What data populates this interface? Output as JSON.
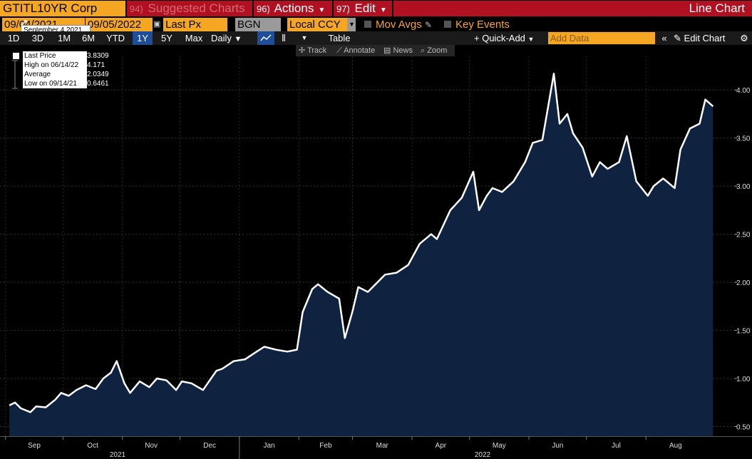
{
  "toolbar": {
    "ticker": "GTITL10YR Corp",
    "suggested": {
      "num": "94)",
      "label": "Suggested Charts"
    },
    "actions": {
      "num": "96)",
      "label": "Actions"
    },
    "edit": {
      "num": "97)",
      "label": "Edit"
    },
    "title": "Line Chart"
  },
  "params": {
    "start_date": "09/04/2021",
    "end_date": "09/05/2022",
    "field": "Last Px",
    "source": "BGN",
    "currency": "Local CCY",
    "mov_avgs": "Mov Avgs",
    "key_events": "Key Events",
    "tooltip": "September 4 2021"
  },
  "ranges": {
    "d1": "1D",
    "d3": "3D",
    "m1": "1M",
    "m6": "6M",
    "ytd": "YTD",
    "y1": "1Y",
    "y5": "5Y",
    "max": "Max",
    "periodicity": "Daily",
    "table": "Table",
    "quick_add": "Quick-Add",
    "add_data_placeholder": "Add Data",
    "edit_chart": "Edit Chart"
  },
  "tools": {
    "track": "Track",
    "annotate": "Annotate",
    "news": "News",
    "zoom": "Zoom"
  },
  "legend": [
    {
      "label": "Last Price",
      "value": "3.8309"
    },
    {
      "label": "High on 06/14/22",
      "value": "4.171"
    },
    {
      "label": "Average",
      "value": "2.0349"
    },
    {
      "label": "Low on 09/14/21",
      "value": "0.6461"
    }
  ],
  "colors": {
    "line": "#ffffff",
    "fill": "#0f2240",
    "accent": "#f5a623",
    "red": "#b01020"
  },
  "chart_data": {
    "type": "area",
    "y_ticks": [
      "0.50",
      "1.00",
      "1.50",
      "2.00",
      "2.50",
      "3.00",
      "3.50",
      "4.00"
    ],
    "ylim": [
      0.4,
      4.35
    ],
    "x_months": [
      "Sep",
      "Oct",
      "Nov",
      "Dec",
      "Jan",
      "Feb",
      "Mar",
      "Apr",
      "May",
      "Jun",
      "Jul",
      "Aug"
    ],
    "x_years": [
      "2021",
      "2022"
    ],
    "x": [
      "2021-09-03",
      "2021-09-06",
      "2021-09-09",
      "2021-09-14",
      "2021-09-17",
      "2021-09-22",
      "2021-09-27",
      "2021-09-30",
      "2021-10-04",
      "2021-10-08",
      "2021-10-13",
      "2021-10-18",
      "2021-10-22",
      "2021-10-26",
      "2021-10-29",
      "2021-11-02",
      "2021-11-05",
      "2021-11-10",
      "2021-11-15",
      "2021-11-19",
      "2021-11-24",
      "2021-11-29",
      "2021-12-02",
      "2021-12-07",
      "2021-12-13",
      "2021-12-20",
      "2021-12-23",
      "2021-12-29",
      "2022-01-04",
      "2022-01-10",
      "2022-01-14",
      "2022-01-20",
      "2022-01-26",
      "2022-01-31",
      "2022-02-03",
      "2022-02-08",
      "2022-02-11",
      "2022-02-16",
      "2022-02-22",
      "2022-02-25",
      "2022-03-01",
      "2022-03-04",
      "2022-03-09",
      "2022-03-14",
      "2022-03-18",
      "2022-03-24",
      "2022-03-30",
      "2022-04-05",
      "2022-04-11",
      "2022-04-14",
      "2022-04-21",
      "2022-04-27",
      "2022-05-03",
      "2022-05-06",
      "2022-05-10",
      "2022-05-13",
      "2022-05-18",
      "2022-05-24",
      "2022-05-30",
      "2022-06-03",
      "2022-06-08",
      "2022-06-14",
      "2022-06-17",
      "2022-06-21",
      "2022-06-24",
      "2022-06-29",
      "2022-07-04",
      "2022-07-08",
      "2022-07-12",
      "2022-07-18",
      "2022-07-22",
      "2022-07-27",
      "2022-08-02",
      "2022-08-05",
      "2022-08-10",
      "2022-08-16",
      "2022-08-19",
      "2022-08-24",
      "2022-08-29",
      "2022-09-01",
      "2022-09-05"
    ],
    "series": [
      {
        "values": [
          0.72,
          0.75,
          0.69,
          0.65,
          0.71,
          0.7,
          0.78,
          0.85,
          0.82,
          0.88,
          0.93,
          0.89,
          1.0,
          1.06,
          1.18,
          0.95,
          0.85,
          0.97,
          0.91,
          1.0,
          0.98,
          0.88,
          0.97,
          0.95,
          0.88,
          1.08,
          1.1,
          1.18,
          1.2,
          1.28,
          1.33,
          1.3,
          1.28,
          1.3,
          1.69,
          1.93,
          1.98,
          1.9,
          1.83,
          1.42,
          1.7,
          1.95,
          1.9,
          2.0,
          2.08,
          2.1,
          2.18,
          2.4,
          2.5,
          2.45,
          2.75,
          2.88,
          3.15,
          2.75,
          2.9,
          2.98,
          2.94,
          3.05,
          3.25,
          3.45,
          3.48,
          4.17,
          3.65,
          3.75,
          3.55,
          3.4,
          3.1,
          3.25,
          3.18,
          3.25,
          3.52,
          3.05,
          2.9,
          3.0,
          3.08,
          2.98,
          3.38,
          3.6,
          3.65,
          3.9,
          3.83
        ]
      }
    ]
  }
}
